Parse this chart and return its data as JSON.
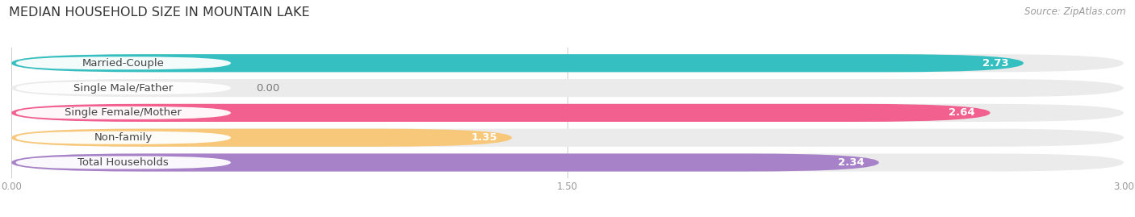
{
  "title": "MEDIAN HOUSEHOLD SIZE IN MOUNTAIN LAKE",
  "source": "Source: ZipAtlas.com",
  "categories": [
    "Married-Couple",
    "Single Male/Father",
    "Single Female/Mother",
    "Non-family",
    "Total Households"
  ],
  "values": [
    2.73,
    0.0,
    2.64,
    1.35,
    2.34
  ],
  "colors": [
    "#35bfc0",
    "#9aaede",
    "#f26090",
    "#f8c87a",
    "#a882c8"
  ],
  "bar_bg_color": "#ebebeb",
  "xlim": [
    0.0,
    3.0
  ],
  "xticks": [
    0.0,
    1.5,
    3.0
  ],
  "xtick_labels": [
    "0.00",
    "1.50",
    "3.00"
  ],
  "background_color": "#ffffff",
  "bar_height": 0.72,
  "bar_gap": 1.0,
  "title_fontsize": 11.5,
  "label_fontsize": 9.5,
  "value_fontsize": 9.5,
  "source_fontsize": 8.5
}
